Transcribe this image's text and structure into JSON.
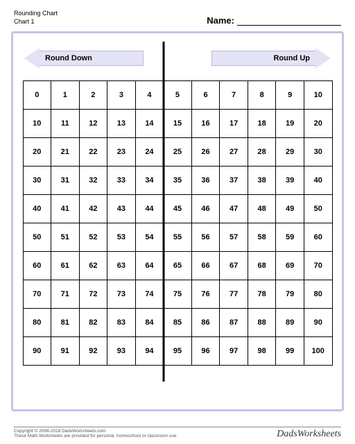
{
  "header": {
    "title_line1": "Rounding Chart",
    "title_line2": "Chart 1",
    "name_label": "Name:"
  },
  "arrows": {
    "left_label": "Round Down",
    "right_label": "Round Up",
    "fill_color": "#e3e3f5",
    "border_color": "#c5c3e6"
  },
  "chart": {
    "type": "table",
    "frame_color": "#c5c3e6",
    "divider_after_col": 5,
    "columns": 11,
    "rows": [
      [
        0,
        1,
        2,
        3,
        4,
        5,
        6,
        7,
        8,
        9,
        10
      ],
      [
        10,
        11,
        12,
        13,
        14,
        15,
        16,
        17,
        18,
        19,
        20
      ],
      [
        20,
        21,
        22,
        23,
        24,
        25,
        26,
        27,
        28,
        29,
        30
      ],
      [
        30,
        31,
        32,
        33,
        34,
        35,
        36,
        37,
        38,
        39,
        40
      ],
      [
        40,
        41,
        42,
        43,
        44,
        45,
        46,
        47,
        48,
        49,
        50
      ],
      [
        50,
        51,
        52,
        53,
        54,
        55,
        56,
        57,
        58,
        59,
        60
      ],
      [
        60,
        61,
        62,
        63,
        64,
        65,
        66,
        67,
        68,
        69,
        70
      ],
      [
        70,
        71,
        72,
        73,
        74,
        75,
        76,
        77,
        78,
        79,
        80
      ],
      [
        80,
        81,
        82,
        83,
        84,
        85,
        86,
        87,
        88,
        89,
        90
      ],
      [
        90,
        91,
        92,
        93,
        94,
        95,
        96,
        97,
        98,
        99,
        100
      ]
    ],
    "cell_border_color": "#000000",
    "cell_bg": "#ffffff",
    "cell_fontsize": 11
  },
  "footer": {
    "copyright": "Copyright © 2008-2018 DadsWorksheets.com",
    "note": "These Math Worksheets are provided for personal, homeschool or classroom use.",
    "brand": "DadsWorksheets"
  }
}
